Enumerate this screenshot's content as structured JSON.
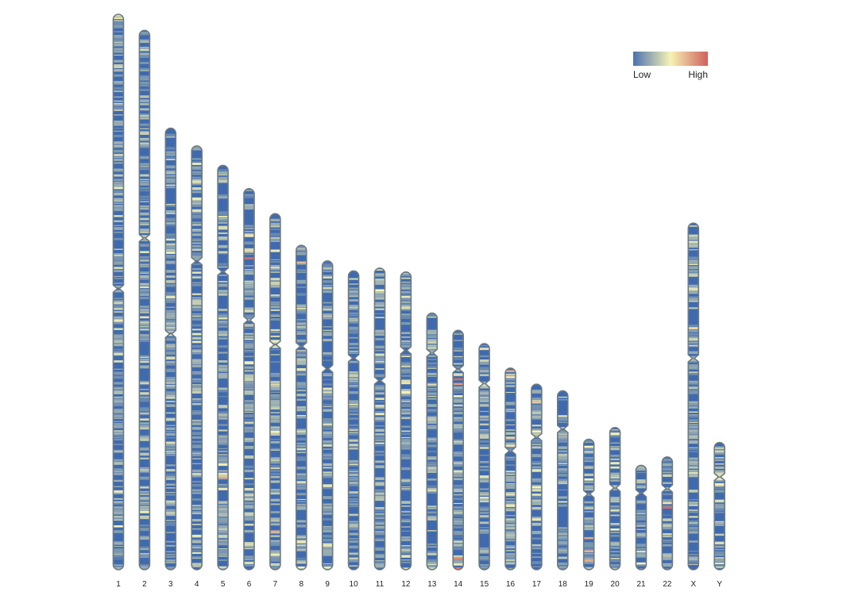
{
  "chart_data": {
    "type": "heatmap",
    "subtype": "chromosome-ideogram-density",
    "title": "",
    "xlabel": "",
    "ylabel": "",
    "legend": {
      "low_label": "Low",
      "high_label": "High",
      "placement": "top-right",
      "colors": [
        "#4a72b0",
        "#f6f3b4",
        "#d0605d"
      ]
    },
    "outline_color": "#6e7a7e",
    "base_color": "#3f6aaf",
    "chromosomes": [
      {
        "name": "1",
        "relative_length": 1.0,
        "centromere": 0.494,
        "hotspots": [
          [
            0.09,
            0.35
          ],
          [
            0.61,
            0.45
          ],
          [
            0.92,
            0.5
          ],
          [
            0.005,
            0.55
          ]
        ]
      },
      {
        "name": "2",
        "relative_length": 0.971,
        "centromere": 0.385,
        "hotspots": [
          [
            0.53,
            0.55
          ]
        ]
      },
      {
        "name": "3",
        "relative_length": 0.795,
        "centromere": 0.466,
        "hotspots": [
          [
            0.25,
            0.45
          ],
          [
            0.28,
            0.5
          ]
        ]
      },
      {
        "name": "4",
        "relative_length": 0.763,
        "centromere": 0.272,
        "hotspots": [
          [
            0.04,
            0.5
          ]
        ]
      },
      {
        "name": "5",
        "relative_length": 0.728,
        "centromere": 0.263,
        "hotspots": [
          [
            0.77,
            0.75
          ],
          [
            0.76,
            0.55
          ]
        ]
      },
      {
        "name": "6",
        "relative_length": 0.686,
        "centromere": 0.345,
        "hotspots": [
          [
            0.18,
            0.95
          ],
          [
            0.12,
            0.55
          ],
          [
            0.16,
            0.6
          ]
        ]
      },
      {
        "name": "7",
        "relative_length": 0.641,
        "centromere": 0.368,
        "hotspots": [
          [
            0.89,
            0.75
          ],
          [
            0.61,
            0.5
          ]
        ]
      },
      {
        "name": "8",
        "relative_length": 0.584,
        "centromere": 0.311,
        "hotspots": [
          [
            0.05,
            0.7
          ],
          [
            0.99,
            0.5
          ]
        ]
      },
      {
        "name": "9",
        "relative_length": 0.556,
        "centromere": 0.349,
        "hotspots": [
          [
            0.99,
            0.5
          ]
        ]
      },
      {
        "name": "10",
        "relative_length": 0.538,
        "centromere": 0.292,
        "hotspots": []
      },
      {
        "name": "11",
        "relative_length": 0.543,
        "centromere": 0.373,
        "hotspots": [
          [
            0.07,
            0.5
          ],
          [
            0.43,
            0.55
          ],
          [
            0.48,
            0.5
          ]
        ]
      },
      {
        "name": "12",
        "relative_length": 0.536,
        "centromere": 0.263,
        "hotspots": [
          [
            0.37,
            0.55
          ],
          [
            0.4,
            0.5
          ],
          [
            0.08,
            0.45
          ]
        ]
      },
      {
        "name": "13",
        "relative_length": 0.462,
        "centromere": 0.155,
        "hotspots": []
      },
      {
        "name": "14",
        "relative_length": 0.431,
        "centromere": 0.162,
        "hotspots": [
          [
            0.2,
            0.95
          ],
          [
            0.22,
            0.8
          ],
          [
            0.95,
            0.85
          ],
          [
            0.99,
            0.9
          ]
        ]
      },
      {
        "name": "15",
        "relative_length": 0.407,
        "centromere": 0.177,
        "hotspots": []
      },
      {
        "name": "16",
        "relative_length": 0.363,
        "centromere": 0.41,
        "hotspots": [
          [
            0.01,
            0.75
          ],
          [
            0.34,
            0.6
          ],
          [
            0.38,
            0.55
          ],
          [
            0.04,
            0.55
          ]
        ]
      },
      {
        "name": "17",
        "relative_length": 0.334,
        "centromere": 0.285,
        "hotspots": [
          [
            0.09,
            0.65
          ],
          [
            0.25,
            0.5
          ],
          [
            0.59,
            0.45
          ],
          [
            0.55,
            0.5
          ]
        ]
      },
      {
        "name": "18",
        "relative_length": 0.322,
        "centromere": 0.213,
        "hotspots": []
      },
      {
        "name": "19",
        "relative_length": 0.235,
        "centromere": 0.42,
        "hotspots": [
          [
            0.75,
            0.75
          ],
          [
            0.85,
            0.7
          ],
          [
            0.92,
            0.75
          ],
          [
            0.05,
            0.5
          ],
          [
            0.3,
            0.5
          ]
        ]
      },
      {
        "name": "20",
        "relative_length": 0.256,
        "centromere": 0.424,
        "hotspots": [
          [
            0.71,
            0.5
          ]
        ]
      },
      {
        "name": "21",
        "relative_length": 0.188,
        "centromere": 0.268,
        "hotspots": [
          [
            0.93,
            0.5
          ]
        ]
      },
      {
        "name": "22",
        "relative_length": 0.203,
        "centromere": 0.28,
        "hotspots": [
          [
            0.44,
            0.95
          ],
          [
            0.4,
            0.55
          ]
        ]
      },
      {
        "name": "X",
        "relative_length": 0.624,
        "centromere": 0.39,
        "hotspots": [
          [
            0.3,
            0.55
          ]
        ]
      },
      {
        "name": "Y",
        "relative_length": 0.229,
        "centromere": 0.27,
        "hotspots": [
          [
            0.32,
            0.5
          ],
          [
            0.25,
            0.45
          ]
        ]
      }
    ]
  }
}
